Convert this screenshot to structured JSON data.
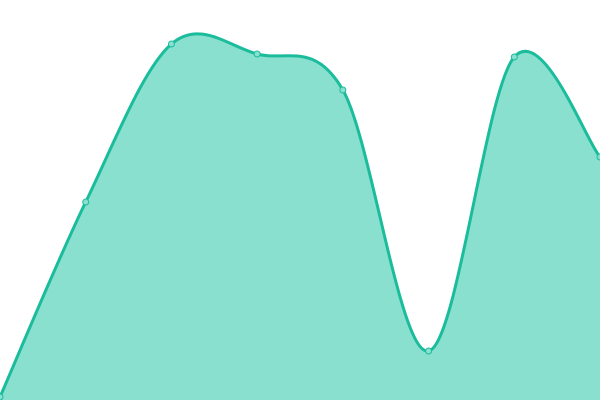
{
  "chart_data": {
    "type": "area",
    "title": "",
    "xlabel": "",
    "ylabel": "",
    "x": [
      0,
      1,
      2,
      3,
      4,
      5,
      6,
      7
    ],
    "series": [
      {
        "values": [
          3,
          198,
          356,
          346,
          310,
          49,
          343,
          243
        ]
      }
    ],
    "ylim": [
      0,
      400
    ],
    "xlim": [
      0,
      7
    ],
    "grid": false,
    "axes_visible": false,
    "smooth": true,
    "colors": {
      "line": "#1abc9c",
      "fill": "#89e0cf",
      "point_fill": "#89e0cf"
    }
  }
}
